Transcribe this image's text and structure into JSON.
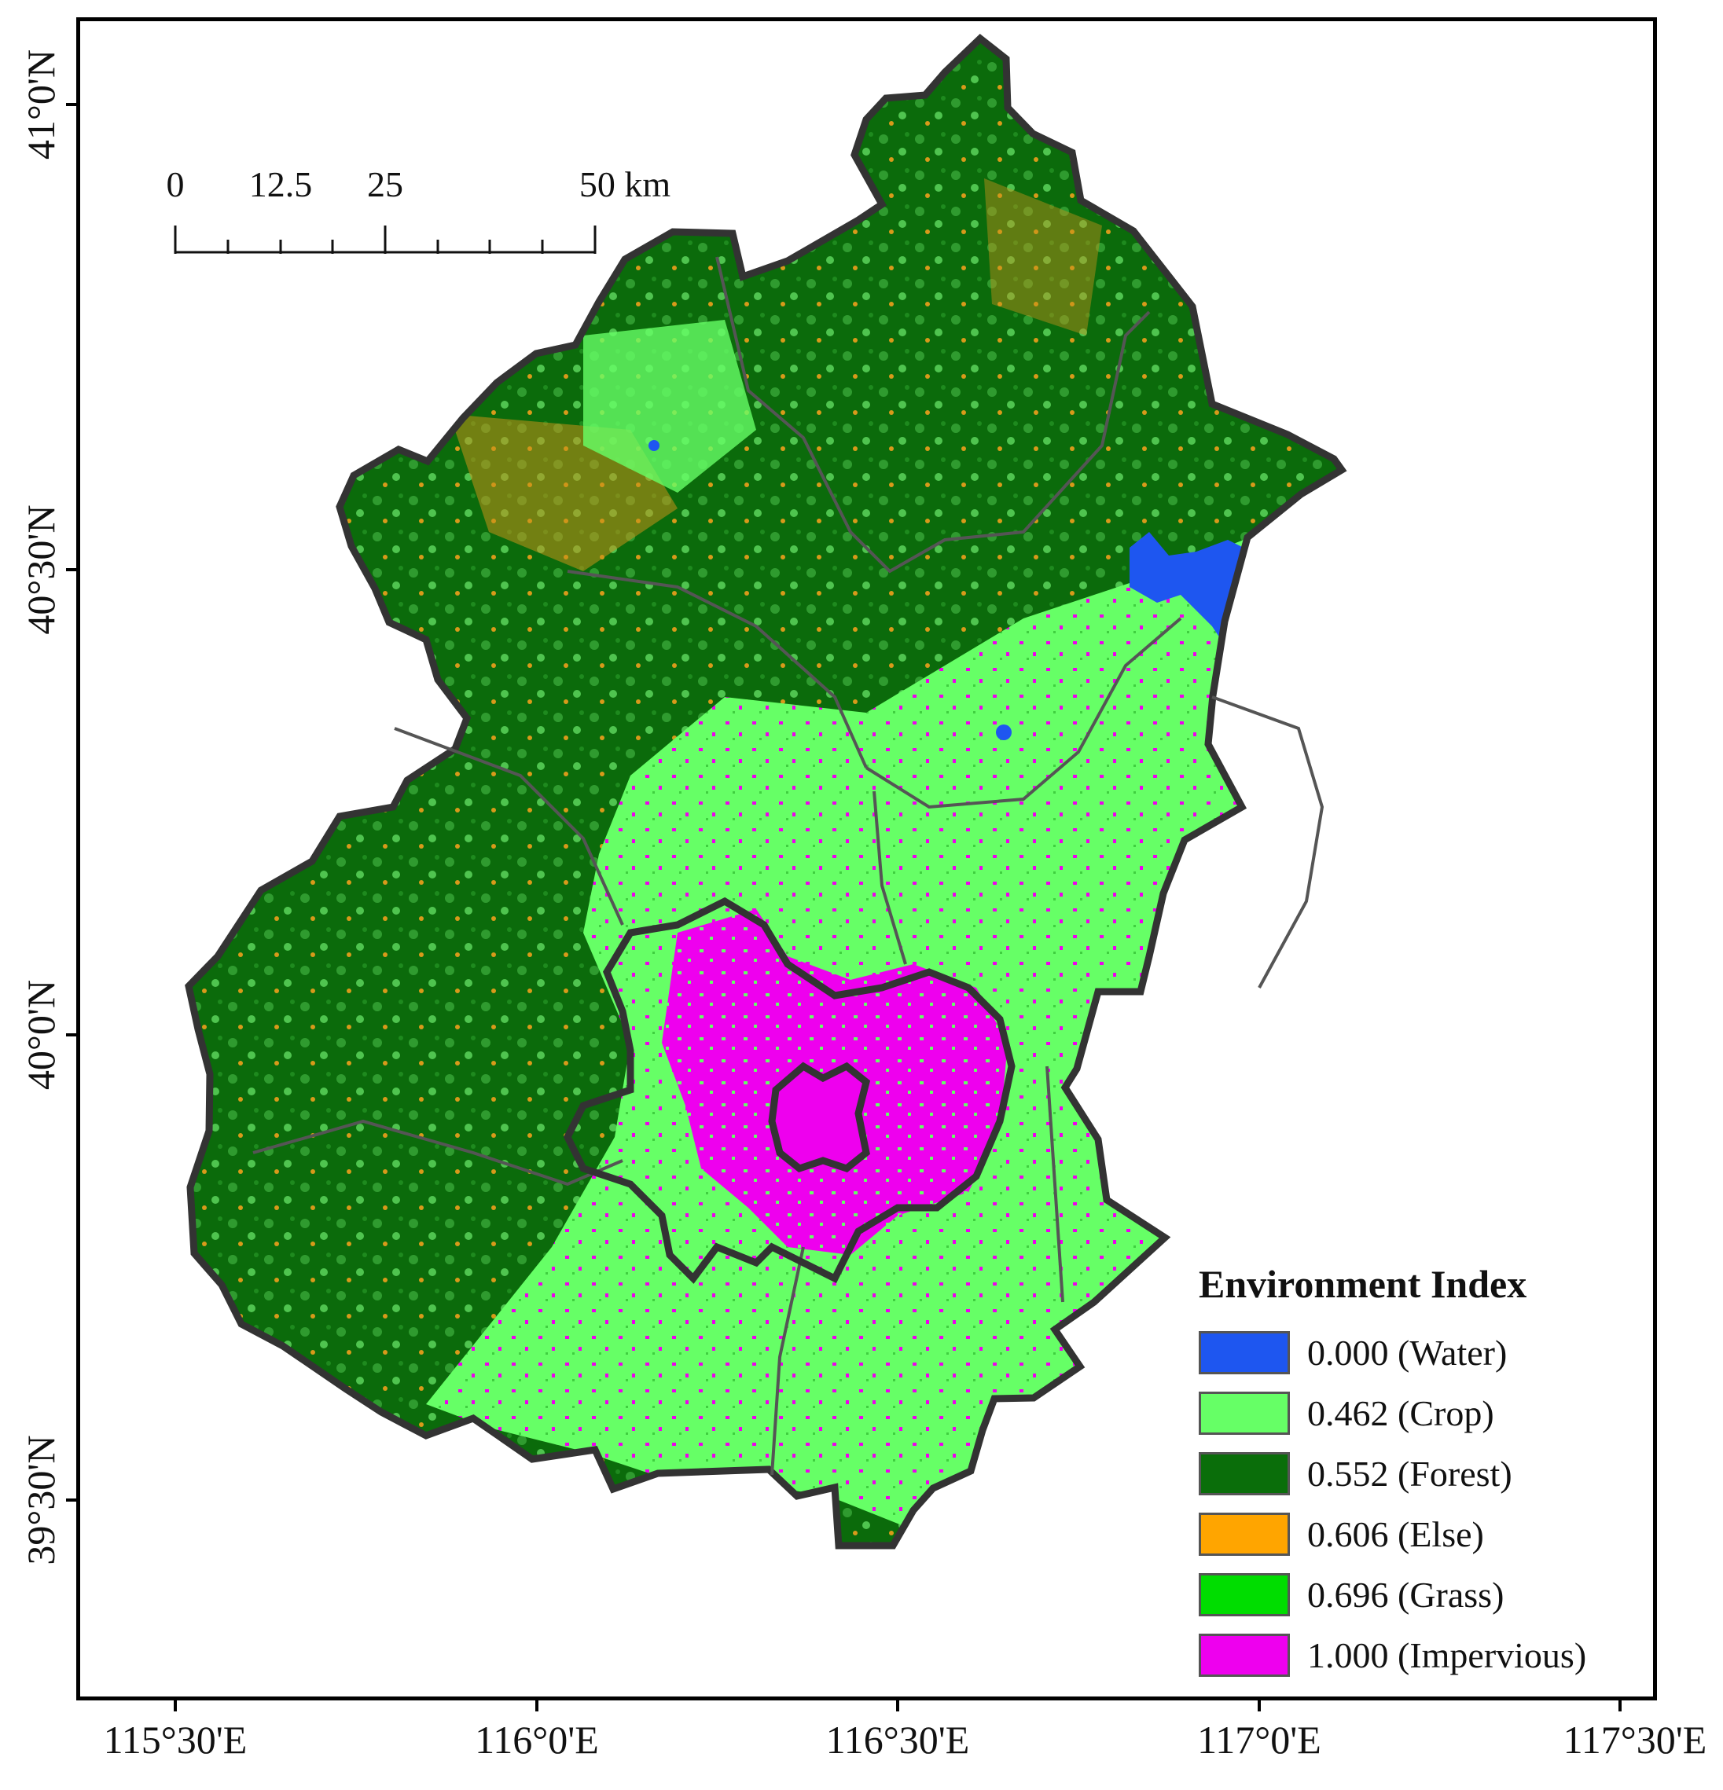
{
  "map": {
    "x_axis_labels": [
      "115°30'E",
      "116°0'E",
      "116°30'E",
      "117°0'E",
      "117°30'E"
    ],
    "y_axis_labels": [
      "41°0'N",
      "40°30'N",
      "40°0'N",
      "39°30'N"
    ]
  },
  "scale_bar": {
    "labels": [
      "0",
      "12.5",
      "25",
      "50 km"
    ]
  },
  "legend": {
    "title": "Environment Index",
    "items": [
      {
        "label": "0.000 (Water)",
        "color": "#1e56f0"
      },
      {
        "label": "0.462 (Crop)",
        "color": "#66ff66"
      },
      {
        "label": "0.552 (Forest)",
        "color": "#0a6e0a"
      },
      {
        "label": "0.606 (Else)",
        "color": "#ffa500"
      },
      {
        "label": "0.696 (Grass)",
        "color": "#00dd00"
      },
      {
        "label": "1.000 (Impervious)",
        "color": "#ee00ee"
      }
    ]
  }
}
